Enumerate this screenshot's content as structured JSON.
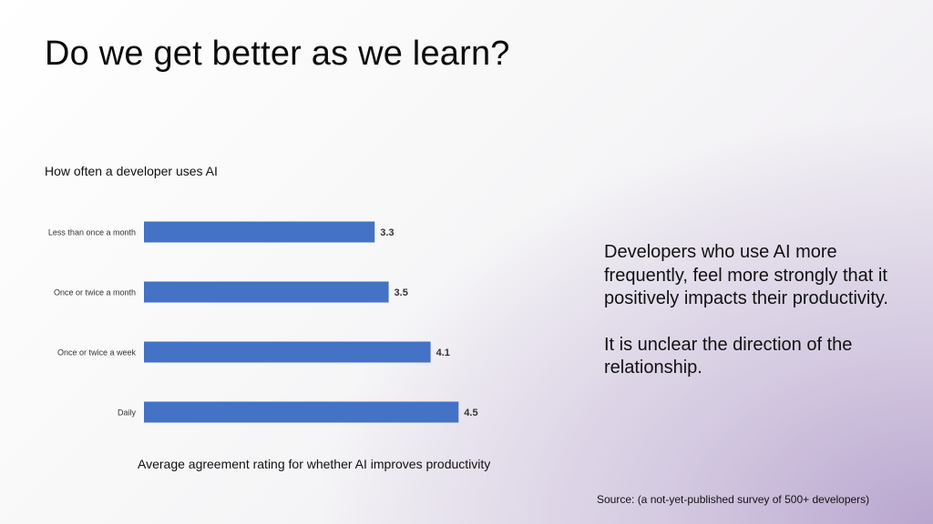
{
  "slide": {
    "title": "Do we get better as we learn?",
    "insight_paragraphs": [
      "Developers who use AI more frequently, feel more strongly that it positively impacts their productivity.",
      "It is unclear the direction of the relationship."
    ],
    "source": "Source: (a not-yet-published survey of 500+ developers)"
  },
  "chart_data": {
    "type": "bar",
    "orientation": "horizontal",
    "title": "How often a developer uses AI",
    "xlabel": "Average agreement rating for whether AI improves productivity",
    "categories": [
      "Less than once a month",
      "Once or twice a month",
      "Once or twice a week",
      "Daily"
    ],
    "values": [
      3.3,
      3.5,
      4.1,
      4.5
    ],
    "data_labels": [
      "3.3",
      "3.5",
      "4.1",
      "4.5"
    ],
    "xlim": [
      0,
      5.2
    ],
    "grid": false,
    "bar_color": "#4472c4"
  }
}
